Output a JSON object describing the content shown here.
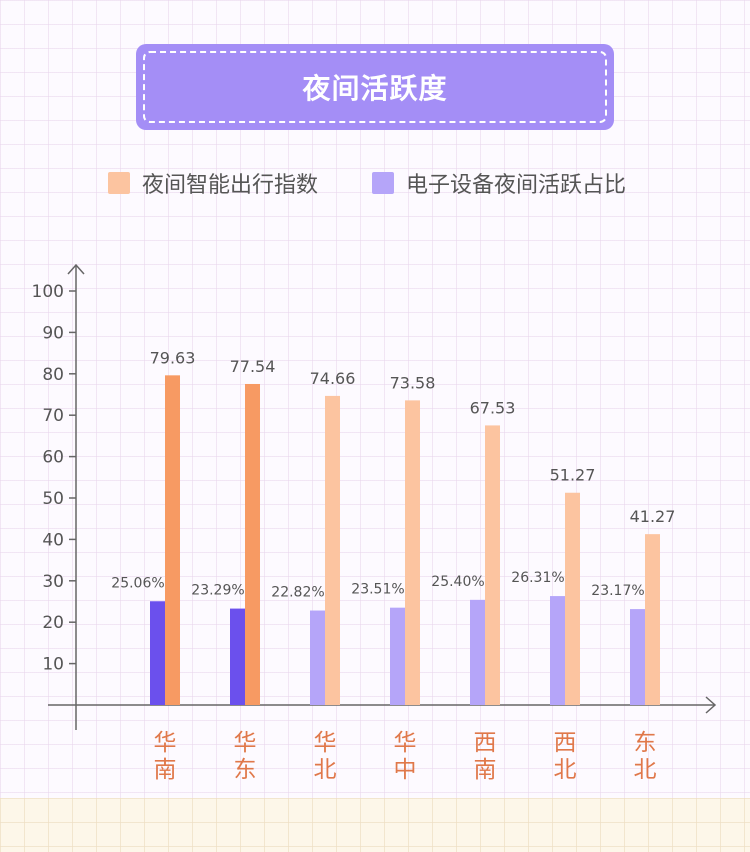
{
  "title": "夜间活跃度",
  "legend": {
    "items": [
      {
        "label": "夜间智能出行指数",
        "color": "#fcc4a0"
      },
      {
        "label": "电子设备夜间活跃占比",
        "color": "#b5a5f9"
      }
    ]
  },
  "colors": {
    "highlight_orange": "#f79a63",
    "light_orange": "#fcc4a0",
    "highlight_purple": "#6b50ed",
    "light_purple": "#b5a5f9",
    "title_bg": "#a48ef6"
  },
  "chart_data": {
    "type": "bar",
    "categories": [
      "华南",
      "华东",
      "华北",
      "华中",
      "西南",
      "西北",
      "东北"
    ],
    "series": [
      {
        "name": "电子设备夜间活跃占比",
        "values": [
          25.06,
          23.29,
          22.82,
          23.51,
          25.4,
          26.31,
          23.17
        ],
        "labels": [
          "25.06%",
          "23.29%",
          "22.82%",
          "23.51%",
          "25.40%",
          "26.31%",
          "23.17%"
        ]
      },
      {
        "name": "夜间智能出行指数",
        "values": [
          79.63,
          77.54,
          74.66,
          73.58,
          67.53,
          51.27,
          41.27
        ],
        "labels": [
          "79.63",
          "77.54",
          "74.66",
          "73.58",
          "67.53",
          "51.27",
          "41.27"
        ]
      }
    ],
    "highlighted_categories": [
      0,
      1
    ],
    "ylim": [
      0,
      100
    ],
    "yticks": [
      10,
      20,
      30,
      40,
      50,
      60,
      70,
      80,
      90,
      100
    ],
    "grid": true,
    "legend_position": "top"
  }
}
